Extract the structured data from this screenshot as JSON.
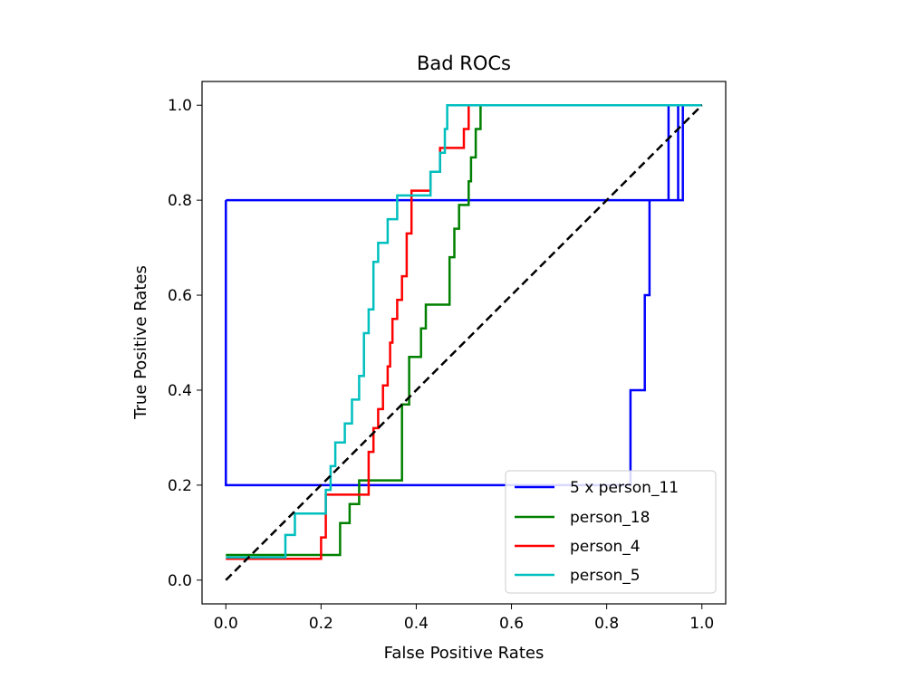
{
  "chart_data": {
    "type": "line",
    "title": "Bad ROCs",
    "xlabel": "False Positive Rates",
    "ylabel": "True Positive Rates",
    "xlim": [
      -0.05,
      1.05
    ],
    "ylim": [
      -0.05,
      1.05
    ],
    "xticks": [
      0.0,
      0.2,
      0.4,
      0.6,
      0.8,
      1.0
    ],
    "yticks": [
      0.0,
      0.2,
      0.4,
      0.6,
      0.8,
      1.0
    ],
    "xtick_labels": [
      "0.0",
      "0.2",
      "0.4",
      "0.6",
      "0.8",
      "1.0"
    ],
    "ytick_labels": [
      "0.0",
      "0.2",
      "0.4",
      "0.6",
      "0.8",
      "1.0"
    ],
    "legend_position": "lower-right",
    "diagonal": {
      "x": [
        0,
        1
      ],
      "y": [
        0,
        1
      ],
      "color": "#000000",
      "style": "dashed"
    },
    "series": [
      {
        "name": "5 x person_11",
        "color": "#0000ff",
        "x": [
          0,
          0,
          0.85,
          0.85,
          0.88,
          0.88,
          0.89,
          0.89,
          0.9,
          0.9,
          0,
          0,
          0.96,
          0.96,
          0.95,
          0.95,
          0.93,
          0.93,
          0.915,
          0.915,
          1.0
        ],
        "y": [
          0.8,
          0.2,
          0.2,
          0.4,
          0.4,
          0.6,
          0.6,
          0.8,
          0.8,
          0.8,
          0.8,
          0.8,
          0.8,
          1.0,
          1.0,
          0.8,
          0.8,
          1.0,
          1.0,
          1.0,
          1.0
        ]
      },
      {
        "name": "person_18",
        "color": "#008000",
        "x": [
          0,
          0.24,
          0.24,
          0.26,
          0.26,
          0.28,
          0.28,
          0.37,
          0.37,
          0.385,
          0.385,
          0.41,
          0.41,
          0.42,
          0.42,
          0.47,
          0.47,
          0.48,
          0.48,
          0.49,
          0.49,
          0.51,
          0.51,
          0.515,
          0.515,
          0.525,
          0.525,
          0.535,
          0.535,
          1.0
        ],
        "y": [
          0.053,
          0.053,
          0.12,
          0.12,
          0.16,
          0.16,
          0.21,
          0.21,
          0.37,
          0.37,
          0.47,
          0.47,
          0.53,
          0.53,
          0.58,
          0.58,
          0.68,
          0.68,
          0.74,
          0.74,
          0.79,
          0.79,
          0.84,
          0.84,
          0.89,
          0.89,
          0.95,
          0.95,
          1.0,
          1.0
        ]
      },
      {
        "name": "person_4",
        "color": "#ff0000",
        "x": [
          0,
          0.2,
          0.2,
          0.21,
          0.21,
          0.3,
          0.3,
          0.31,
          0.31,
          0.32,
          0.32,
          0.33,
          0.33,
          0.34,
          0.34,
          0.345,
          0.345,
          0.35,
          0.35,
          0.36,
          0.36,
          0.37,
          0.37,
          0.38,
          0.38,
          0.39,
          0.39,
          0.43,
          0.43,
          0.45,
          0.45,
          0.5,
          0.5,
          0.51,
          0.51,
          1.0
        ],
        "y": [
          0.045,
          0.045,
          0.09,
          0.09,
          0.18,
          0.18,
          0.27,
          0.27,
          0.32,
          0.32,
          0.36,
          0.36,
          0.41,
          0.41,
          0.45,
          0.45,
          0.5,
          0.5,
          0.55,
          0.55,
          0.59,
          0.59,
          0.64,
          0.64,
          0.73,
          0.73,
          0.82,
          0.82,
          0.86,
          0.86,
          0.91,
          0.91,
          0.95,
          0.95,
          1.0,
          1.0
        ]
      },
      {
        "name": "person_5",
        "color": "#00bfbf",
        "x": [
          0,
          0.125,
          0.125,
          0.145,
          0.145,
          0.21,
          0.21,
          0.22,
          0.22,
          0.23,
          0.23,
          0.25,
          0.25,
          0.265,
          0.265,
          0.28,
          0.28,
          0.29,
          0.29,
          0.3,
          0.3,
          0.31,
          0.31,
          0.32,
          0.32,
          0.34,
          0.34,
          0.36,
          0.36,
          0.43,
          0.43,
          0.45,
          0.45,
          0.46,
          0.46,
          0.465,
          0.465,
          1.0
        ],
        "y": [
          0.048,
          0.048,
          0.095,
          0.095,
          0.14,
          0.14,
          0.19,
          0.19,
          0.24,
          0.24,
          0.29,
          0.29,
          0.33,
          0.33,
          0.38,
          0.38,
          0.43,
          0.43,
          0.52,
          0.52,
          0.57,
          0.57,
          0.67,
          0.67,
          0.71,
          0.71,
          0.76,
          0.76,
          0.81,
          0.81,
          0.86,
          0.86,
          0.9,
          0.9,
          0.95,
          0.95,
          1.0,
          1.0
        ]
      }
    ]
  }
}
